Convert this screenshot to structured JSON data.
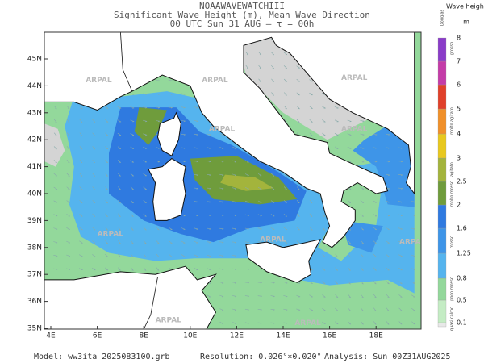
{
  "header": {
    "model_name": "NOAAWAVEWATCHIII",
    "title": "Significant Wave Height (m), Mean Wave Direction",
    "time": "00 UTC Sun 31 AUG  —  τ = 00h"
  },
  "map": {
    "lat_labels": [
      "45N",
      "44N",
      "43N",
      "42N",
      "41N",
      "40N",
      "39N",
      "38N",
      "37N",
      "36N",
      "35N"
    ],
    "lon_labels": [
      "4E",
      "6E",
      "8E",
      "10E",
      "12E",
      "14E",
      "16E",
      "18E"
    ],
    "watermark": "ARPAL"
  },
  "colorbar": {
    "title": "Wave height",
    "unit": "m",
    "scale_name": "Douglas",
    "levels": [
      {
        "label": "0.1",
        "color": "#e8e8e8"
      },
      {
        "label": "0.5",
        "color": "#c4ecc4"
      },
      {
        "label": "0.8",
        "color": "#93d89b"
      },
      {
        "label": "1.25",
        "color": "#55b4ee"
      },
      {
        "label": "1.6",
        "color": "#3e95e8"
      },
      {
        "label": "2",
        "color": "#2f7ae0"
      },
      {
        "label": "2.5",
        "color": "#6f9c3c"
      },
      {
        "label": "3",
        "color": "#a3b43c"
      },
      {
        "label": "4",
        "color": "#e8c81e"
      },
      {
        "label": "5",
        "color": "#f0902a"
      },
      {
        "label": "6",
        "color": "#e0402a"
      },
      {
        "label": "7",
        "color": "#c43ca8"
      },
      {
        "label": "8",
        "color": "#8a3cc8"
      }
    ],
    "sea_states": [
      "quasi calmo",
      "poco mosso",
      "mosso",
      "molto mosso",
      "agitato",
      "molto agitato",
      "grosso"
    ]
  },
  "footer": {
    "model": "Model: ww3ita_2025083100.grb",
    "resolution": "Resolution: 0.026°×0.020°",
    "analysis": "Analysis: Sun 00Z31AUG2025"
  }
}
